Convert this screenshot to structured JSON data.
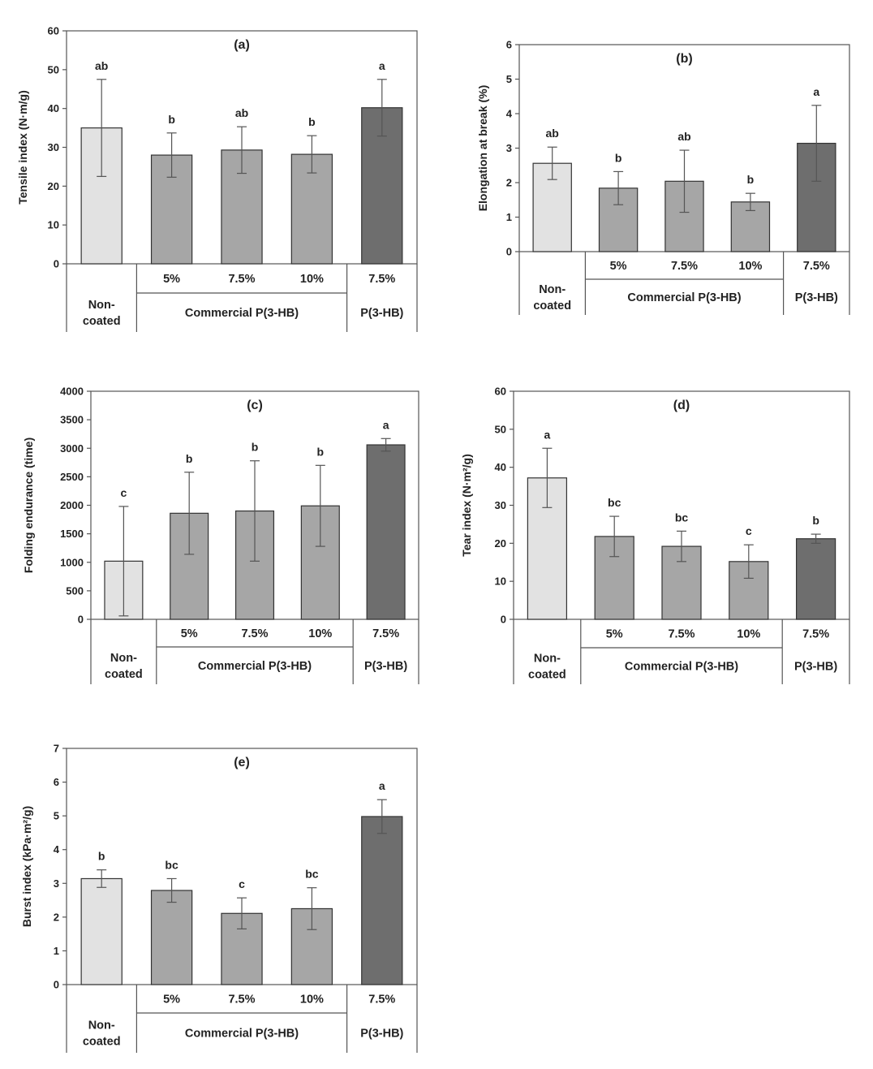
{
  "figure": {
    "groups": {
      "noncoated_line1": "Non-",
      "noncoated_line2": "coated",
      "commercial": "Commercial P(3-HB)",
      "p3hb": "P(3-HB)"
    },
    "colors": {
      "noncoated": "#e2e2e2",
      "commercial": "#a6a6a6",
      "p3hb": "#6e6e6e",
      "axis": "#555555",
      "error": "#555555"
    }
  },
  "chart_data": [
    {
      "id": "a",
      "type": "bar",
      "title": "(a)",
      "ylabel": "Tensile index (N·m/g)",
      "ylim": [
        0,
        60
      ],
      "yticks": [
        "0",
        "10",
        "20",
        "30",
        "40",
        "50",
        "60"
      ],
      "categories": [
        "Non-coated",
        "5%",
        "7.5%",
        "10%",
        "7.5%"
      ],
      "values": [
        35,
        28,
        29.3,
        28.2,
        40.2
      ],
      "errors": [
        12.5,
        5.7,
        6,
        4.8,
        7.3
      ],
      "letters": [
        "ab",
        "b",
        "ab",
        "b",
        "a"
      ]
    },
    {
      "id": "b",
      "type": "bar",
      "title": "(b)",
      "ylabel": "Elongation at break (%)",
      "ylim": [
        0,
        6
      ],
      "yticks": [
        "0",
        "1",
        "2",
        "3",
        "4",
        "5",
        "6"
      ],
      "categories": [
        "Non-coated",
        "5%",
        "7.5%",
        "10%",
        "7.5%"
      ],
      "values": [
        2.56,
        1.84,
        2.04,
        1.44,
        3.14
      ],
      "errors": [
        0.47,
        0.48,
        0.9,
        0.25,
        1.1
      ],
      "letters": [
        "ab",
        "b",
        "ab",
        "b",
        "a"
      ]
    },
    {
      "id": "c",
      "type": "bar",
      "title": "(c)",
      "ylabel": "Folding endurance (time)",
      "ylim": [
        0,
        4000
      ],
      "yticks": [
        "0",
        "500",
        "1000",
        "1500",
        "2000",
        "2500",
        "3000",
        "3500",
        "4000"
      ],
      "categories": [
        "Non-coated",
        "5%",
        "7.5%",
        "10%",
        "7.5%"
      ],
      "values": [
        1020,
        1860,
        1900,
        1990,
        3060
      ],
      "errors": [
        960,
        720,
        880,
        710,
        110
      ],
      "letters": [
        "c",
        "b",
        "b",
        "b",
        "a"
      ]
    },
    {
      "id": "d",
      "type": "bar",
      "title": "(d)",
      "ylabel": "Tear index (N·m²/g)",
      "ylim": [
        0,
        60
      ],
      "yticks": [
        "0",
        "10",
        "20",
        "30",
        "40",
        "50",
        "60"
      ],
      "categories": [
        "Non-coated",
        "5%",
        "7.5%",
        "10%",
        "7.5%"
      ],
      "values": [
        37.2,
        21.8,
        19.2,
        15.2,
        21.2
      ],
      "errors": [
        7.8,
        5.3,
        4,
        4.4,
        1.2
      ],
      "letters": [
        "a",
        "bc",
        "bc",
        "c",
        "b"
      ]
    },
    {
      "id": "e",
      "type": "bar",
      "title": "(e)",
      "ylabel": "Burst index (kPa·m²/g)",
      "ylim": [
        0,
        7
      ],
      "yticks": [
        "0",
        "1",
        "2",
        "3",
        "4",
        "5",
        "6",
        "7"
      ],
      "categories": [
        "Non-coated",
        "5%",
        "7.5%",
        "10%",
        "7.5%"
      ],
      "values": [
        3.14,
        2.79,
        2.11,
        2.25,
        4.98
      ],
      "errors": [
        0.26,
        0.35,
        0.46,
        0.62,
        0.5
      ],
      "letters": [
        "b",
        "bc",
        "c",
        "bc",
        "a"
      ]
    }
  ]
}
